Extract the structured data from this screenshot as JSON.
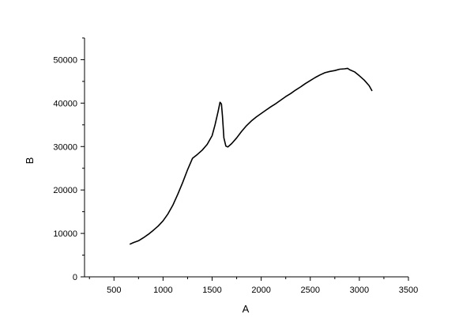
{
  "chart_data": {
    "type": "line",
    "title": "",
    "xlabel": "A",
    "ylabel": "B",
    "xlim": [
      200,
      3500
    ],
    "ylim": [
      0,
      55000
    ],
    "xticks": [
      500,
      1000,
      1500,
      2000,
      2500,
      3000,
      3500
    ],
    "yticks": [
      0,
      10000,
      20000,
      30000,
      40000,
      50000
    ],
    "grid": false,
    "legend": "none",
    "color": "#000000",
    "series": [
      {
        "x": [
          660,
          700,
          750,
          800,
          850,
          900,
          950,
          1000,
          1050,
          1100,
          1150,
          1200,
          1250,
          1300,
          1350,
          1400,
          1450,
          1500,
          1530,
          1560,
          1580,
          1595,
          1605,
          1620,
          1640,
          1660,
          1680,
          1700,
          1750,
          1800,
          1850,
          1900,
          1950,
          2000,
          2050,
          2100,
          2150,
          2200,
          2250,
          2300,
          2350,
          2400,
          2450,
          2500,
          2550,
          2600,
          2650,
          2700,
          2750,
          2800,
          2850,
          2880,
          2900,
          2950,
          3000,
          3050,
          3100,
          3130
        ],
        "y": [
          7500,
          7900,
          8300,
          9000,
          9800,
          10700,
          11700,
          12900,
          14500,
          16500,
          19000,
          21700,
          24700,
          27300,
          28200,
          29200,
          30500,
          32500,
          35000,
          38000,
          40200,
          39800,
          37000,
          32000,
          30100,
          29900,
          30300,
          30700,
          32000,
          33500,
          34800,
          35900,
          36800,
          37600,
          38400,
          39200,
          39900,
          40700,
          41500,
          42200,
          43000,
          43700,
          44500,
          45200,
          45900,
          46500,
          47000,
          47300,
          47500,
          47800,
          47900,
          48000,
          47700,
          47200,
          46300,
          45300,
          44000,
          42800
        ]
      }
    ]
  }
}
